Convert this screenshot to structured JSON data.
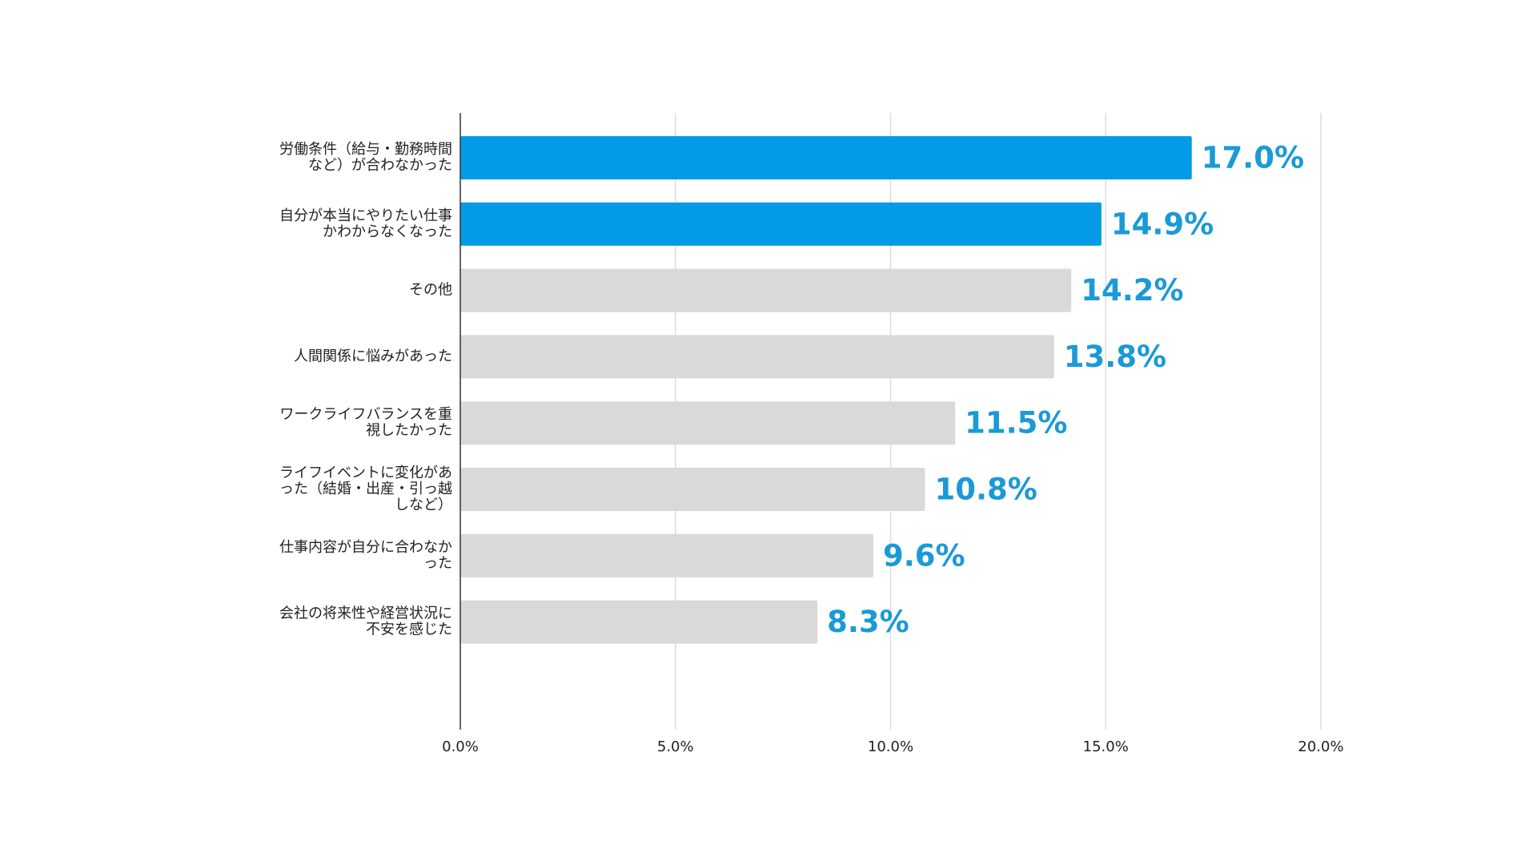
{
  "chart_data": {
    "type": "bar",
    "orientation": "horizontal",
    "categories": [
      "労働条件（給与・勤務時間など）が合わなかった",
      "自分が本当にやりたい仕事かわからなくなった",
      "その他",
      "人間関係に悩みがあった",
      "ワークライフバランスを重視したかった",
      "ライフイベントに変化があった（結婚・出産・引っ越しなど）",
      "仕事内容が自分に合わなかった",
      "会社の将来性や経営状況に不安を感じた"
    ],
    "values": [
      17.0,
      14.9,
      14.2,
      13.8,
      11.5,
      10.8,
      9.6,
      8.3
    ],
    "value_labels": [
      "17.0%",
      "14.9%",
      "14.2%",
      "13.8%",
      "11.5%",
      "10.8%",
      "9.6%",
      "8.3%"
    ],
    "colors": [
      "#039be5",
      "#039be5",
      "#d9d9d9",
      "#d9d9d9",
      "#d9d9d9",
      "#d9d9d9",
      "#d9d9d9",
      "#d9d9d9"
    ],
    "label_color": "#1a9ad6",
    "xlim": [
      0,
      20
    ],
    "xticks": [
      {
        "value": 0,
        "label": "0.0%"
      },
      {
        "value": 5,
        "label": "5.0%"
      },
      {
        "value": 10,
        "label": "10.0%"
      },
      {
        "value": 15,
        "label": "15.0%"
      },
      {
        "value": 20,
        "label": "20.0%"
      }
    ],
    "grid": true
  }
}
